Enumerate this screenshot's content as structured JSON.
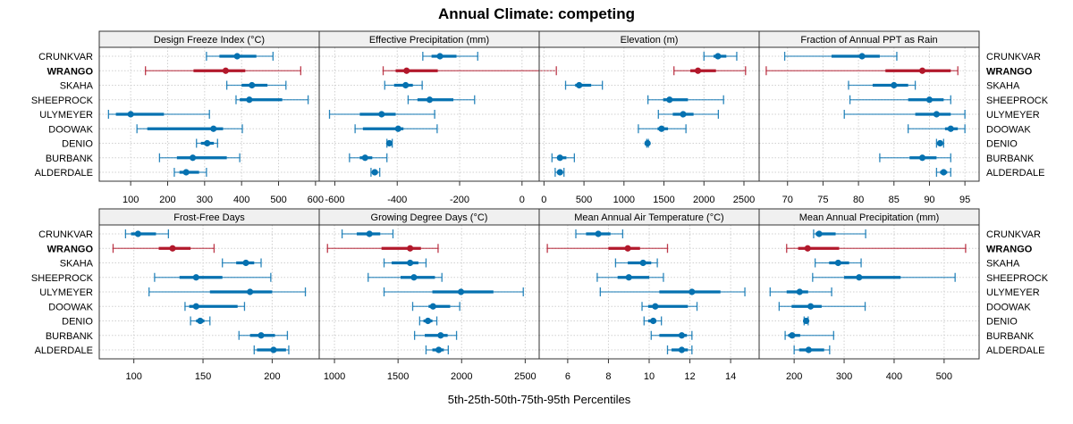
{
  "chart_data": {
    "type": "dotplot-percentiles",
    "title": "Annual Climate: competing",
    "xlabel": "5th-25th-50th-75th-95th Percentiles",
    "grid": true,
    "highlight_color": "#b2182b",
    "default_color": "#0571b0",
    "categories": [
      "CRUNKVAR",
      "WRANGO",
      "SKAHA",
      "SHEEPROCK",
      "ULYMEYER",
      "DOOWAK",
      "DENIO",
      "BURBANK",
      "ALDERDALE"
    ],
    "highlight": "WRANGO",
    "panels": [
      {
        "title": "Design Freeze Index (°C)",
        "xlim": [
          15,
          610
        ],
        "ticks": [
          100,
          200,
          300,
          400,
          500,
          600
        ],
        "tick_labels": [
          "100",
          "200",
          "300",
          "400",
          "500",
          "600"
        ],
        "data": [
          [
            305,
            340,
            388,
            440,
            485
          ],
          [
            140,
            270,
            357,
            410,
            560
          ],
          [
            360,
            400,
            428,
            470,
            520
          ],
          [
            385,
            395,
            421,
            510,
            580
          ],
          [
            40,
            60,
            100,
            190,
            313
          ],
          [
            117,
            145,
            324,
            350,
            402
          ],
          [
            278,
            290,
            307,
            325,
            335
          ],
          [
            178,
            225,
            268,
            360,
            395
          ],
          [
            218,
            232,
            250,
            285,
            305
          ]
        ]
      },
      {
        "title": "Effective Precipitation (mm)",
        "xlim": [
          -650,
          55
        ],
        "ticks": [
          -600,
          -400,
          -200,
          0
        ],
        "tick_labels": [
          "-600",
          "-400",
          "-200",
          "0"
        ],
        "data": [
          [
            -318,
            -290,
            -263,
            -210,
            -142
          ],
          [
            -445,
            -405,
            -370,
            -270,
            110
          ],
          [
            -440,
            -410,
            -373,
            -350,
            -320
          ],
          [
            -365,
            -335,
            -296,
            -220,
            -152
          ],
          [
            -617,
            -520,
            -450,
            -405,
            -280
          ],
          [
            -535,
            -510,
            -397,
            -380,
            -272
          ],
          [
            -433,
            -428,
            -425,
            -420,
            -416
          ],
          [
            -553,
            -520,
            -503,
            -480,
            -433
          ],
          [
            -484,
            -478,
            -472,
            -462,
            -456
          ]
        ]
      },
      {
        "title": "Elevation (m)",
        "xlim": [
          -60,
          2690
        ],
        "ticks": [
          0,
          500,
          1000,
          1500,
          2000,
          2500
        ],
        "tick_labels": [
          "0",
          "500",
          "1000",
          "1500",
          "2000",
          "2500"
        ],
        "data": [
          [
            2000,
            2120,
            2175,
            2280,
            2410
          ],
          [
            1625,
            1830,
            1925,
            2150,
            2520
          ],
          [
            270,
            390,
            440,
            590,
            730
          ],
          [
            1300,
            1490,
            1570,
            1800,
            2245
          ],
          [
            1430,
            1610,
            1740,
            1870,
            2180
          ],
          [
            1180,
            1420,
            1470,
            1550,
            1775
          ],
          [
            1285,
            1290,
            1295,
            1300,
            1305
          ],
          [
            100,
            165,
            200,
            280,
            380
          ],
          [
            140,
            175,
            200,
            225,
            250
          ]
        ]
      },
      {
        "title": "Fraction of Annual PPT as Rain",
        "xlim": [
          66,
          97
        ],
        "ticks": [
          70,
          75,
          80,
          85,
          90,
          95
        ],
        "tick_labels": [
          "70",
          "75",
          "80",
          "85",
          "90",
          "95"
        ],
        "data": [
          [
            69.6,
            76.2,
            80.5,
            83.0,
            85.4
          ],
          [
            67.0,
            83.8,
            89.0,
            93.0,
            94.0
          ],
          [
            78.6,
            82.0,
            85.0,
            87.0,
            88.0
          ],
          [
            78.8,
            87.0,
            90.0,
            92.0,
            93.0
          ],
          [
            78.0,
            88.0,
            91.0,
            93.0,
            95.0
          ],
          [
            87.0,
            92.2,
            93.0,
            94.0,
            95.0
          ],
          [
            91.0,
            91.3,
            91.5,
            91.7,
            92.0
          ],
          [
            83.0,
            87.2,
            89.0,
            91.0,
            93.0
          ],
          [
            91.0,
            91.5,
            92.0,
            92.5,
            93.0
          ]
        ]
      },
      {
        "title": "Frost-Free Days",
        "xlim": [
          75,
          234
        ],
        "ticks": [
          100,
          150,
          200
        ],
        "tick_labels": [
          "100",
          "150",
          "200"
        ],
        "data": [
          [
            94,
            98,
            103,
            116,
            125
          ],
          [
            85,
            118,
            128,
            141,
            158
          ],
          [
            164,
            174,
            181,
            187,
            192
          ],
          [
            115,
            133,
            145,
            164,
            199
          ],
          [
            111,
            155,
            184,
            200,
            224
          ],
          [
            137,
            140,
            145,
            175,
            180
          ],
          [
            141,
            145,
            148,
            151,
            155
          ],
          [
            176,
            184,
            192,
            202,
            211
          ],
          [
            187,
            189,
            201,
            210,
            212
          ]
        ]
      },
      {
        "title": "Growing Degree Days (°C)",
        "xlim": [
          880,
          2610
        ],
        "ticks": [
          1000,
          1500,
          2000,
          2500
        ],
        "tick_labels": [
          "1000",
          "1500",
          "2000",
          "2500"
        ],
        "data": [
          [
            1060,
            1175,
            1275,
            1360,
            1460
          ],
          [
            945,
            1370,
            1595,
            1680,
            1815
          ],
          [
            1390,
            1450,
            1595,
            1660,
            1720
          ],
          [
            1265,
            1520,
            1625,
            1790,
            1845
          ],
          [
            1390,
            1770,
            1995,
            2250,
            2485
          ],
          [
            1615,
            1740,
            1775,
            1910,
            1985
          ],
          [
            1670,
            1700,
            1735,
            1770,
            1805
          ],
          [
            1630,
            1710,
            1835,
            1890,
            1960
          ],
          [
            1720,
            1770,
            1820,
            1860,
            1895
          ]
        ]
      },
      {
        "title": "Mean Annual Air Temperature (°C)",
        "xlim": [
          4.6,
          15.4
        ],
        "ticks": [
          6,
          8,
          10,
          12,
          14
        ],
        "tick_labels": [
          "6",
          "8",
          "10",
          "12",
          "14"
        ],
        "data": [
          [
            6.4,
            6.9,
            7.5,
            8.1,
            8.7
          ],
          [
            5.0,
            8.0,
            8.95,
            9.55,
            10.9
          ],
          [
            8.35,
            8.95,
            9.7,
            10.1,
            10.4
          ],
          [
            7.45,
            8.45,
            9.0,
            10.0,
            10.7
          ],
          [
            7.6,
            10.5,
            12.1,
            13.5,
            14.7
          ],
          [
            9.65,
            9.95,
            10.3,
            11.9,
            12.35
          ],
          [
            9.75,
            9.95,
            10.2,
            10.35,
            10.6
          ],
          [
            10.1,
            10.5,
            11.6,
            11.85,
            12.1
          ],
          [
            10.9,
            11.1,
            11.6,
            11.9,
            12.1
          ]
        ]
      },
      {
        "title": "Mean Annual Precipitation (mm)",
        "xlim": [
          130,
          570
        ],
        "ticks": [
          200,
          300,
          400,
          500
        ],
        "tick_labels": [
          "200",
          "300",
          "400",
          "500"
        ],
        "data": [
          [
            239,
            243,
            250,
            283,
            343
          ],
          [
            185,
            208,
            227,
            290,
            543
          ],
          [
            242,
            270,
            288,
            310,
            334
          ],
          [
            237,
            300,
            330,
            413,
            522
          ],
          [
            152,
            185,
            211,
            228,
            275
          ],
          [
            170,
            195,
            233,
            255,
            342
          ],
          [
            220,
            222,
            224,
            226,
            228
          ],
          [
            182,
            188,
            196,
            212,
            279
          ],
          [
            200,
            210,
            229,
            260,
            271
          ]
        ]
      }
    ]
  }
}
